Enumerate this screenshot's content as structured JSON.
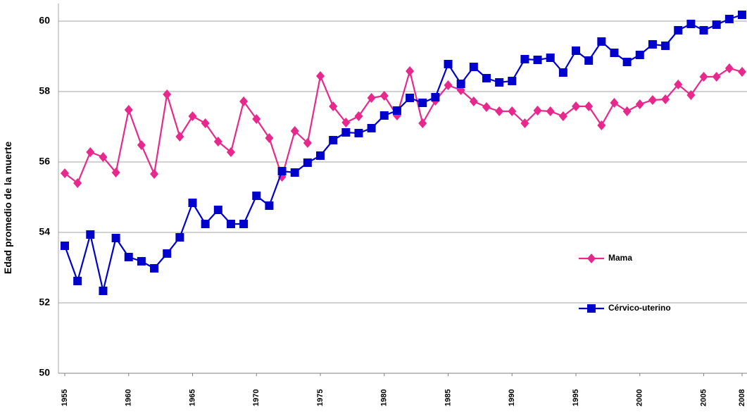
{
  "chart_data": {
    "type": "line",
    "y_label": "Edad promedio de la muerte",
    "x": [
      1955,
      1956,
      1957,
      1958,
      1959,
      1960,
      1961,
      1962,
      1963,
      1964,
      1965,
      1966,
      1967,
      1968,
      1969,
      1970,
      1971,
      1972,
      1973,
      1974,
      1975,
      1976,
      1977,
      1978,
      1979,
      1980,
      1981,
      1982,
      1983,
      1984,
      1985,
      1986,
      1987,
      1988,
      1989,
      1990,
      1991,
      1992,
      1993,
      1994,
      1995,
      1996,
      1997,
      1998,
      1999,
      2000,
      2001,
      2002,
      2003,
      2004,
      2005,
      2006,
      2007,
      2008
    ],
    "series": [
      {
        "name": "Mama",
        "color": "#e8288c",
        "marker": "diamond",
        "values": [
          55.68,
          55.4,
          56.28,
          56.14,
          55.7,
          57.48,
          56.48,
          55.66,
          57.92,
          56.72,
          57.3,
          57.1,
          56.58,
          56.28,
          57.72,
          57.22,
          56.68,
          55.58,
          56.88,
          56.54,
          58.44,
          57.58,
          57.12,
          57.3,
          57.82,
          57.88,
          57.32,
          58.58,
          57.1,
          57.74,
          58.18,
          58.04,
          57.72,
          57.56,
          57.44,
          57.44,
          57.1,
          57.46,
          57.44,
          57.3,
          57.58,
          57.58,
          57.04,
          57.68,
          57.44,
          57.64,
          57.76,
          57.78,
          58.2,
          57.9,
          58.42,
          58.42,
          58.66,
          58.56
        ]
      },
      {
        "name": "Cérvico-uterino",
        "color": "#0000cc",
        "marker": "square",
        "values": [
          53.62,
          52.62,
          53.94,
          52.34,
          53.84,
          53.3,
          53.18,
          52.98,
          53.4,
          53.86,
          54.84,
          54.24,
          54.64,
          54.24,
          54.24,
          55.04,
          54.76,
          55.74,
          55.7,
          55.98,
          56.18,
          56.62,
          56.84,
          56.82,
          56.96,
          57.32,
          57.46,
          57.82,
          57.68,
          57.84,
          58.78,
          58.22,
          58.7,
          58.38,
          58.26,
          58.3,
          58.92,
          58.9,
          58.96,
          58.54,
          59.16,
          58.88,
          59.42,
          59.1,
          58.84,
          59.04,
          59.34,
          59.3,
          59.74,
          59.92,
          59.74,
          59.9,
          60.06,
          60.18
        ]
      }
    ],
    "xlim": [
      1955,
      2008
    ],
    "xticks": [
      1955,
      1960,
      1965,
      1970,
      1975,
      1980,
      1985,
      1990,
      1995,
      2000,
      2005,
      2008
    ],
    "ylim": [
      50,
      60.5
    ],
    "yticks": [
      50,
      52,
      54,
      56,
      58,
      60
    ],
    "grid": true,
    "legend": "right"
  }
}
